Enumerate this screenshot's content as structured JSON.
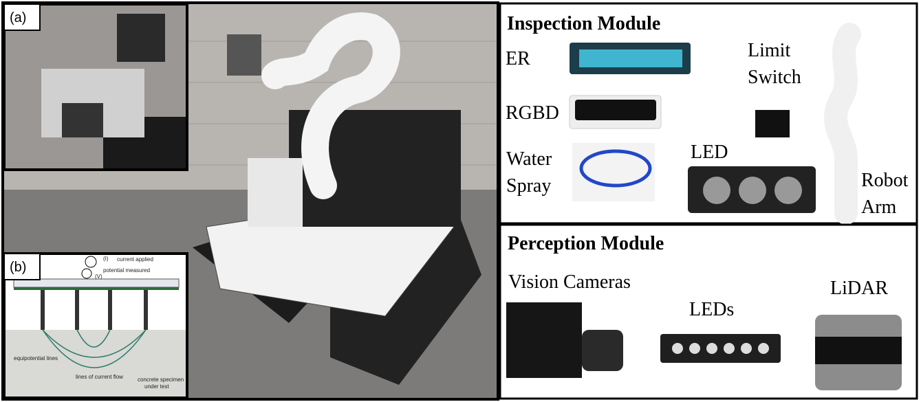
{
  "panel_a": {
    "tag": "(a)"
  },
  "panel_b": {
    "tag": "(b)",
    "labels": [
      "(I)",
      "current applied",
      "potential measured",
      "(V)",
      "equipotential lines",
      "lines of current flow",
      "concrete specimen",
      "under test"
    ]
  },
  "inspection": {
    "title": "Inspection Module",
    "items": [
      {
        "lines": [
          "ER"
        ]
      },
      {
        "lines": [
          "RGBD"
        ]
      },
      {
        "lines": [
          "Water",
          "Spray"
        ]
      },
      {
        "lines": [
          "LED"
        ]
      },
      {
        "lines": [
          "Limit",
          "Switch"
        ]
      },
      {
        "lines": [
          "Robot",
          "Arm"
        ]
      }
    ]
  },
  "perception": {
    "title": "Perception Module",
    "items": [
      {
        "lines": [
          "Vision Cameras"
        ]
      },
      {
        "lines": [
          "LEDs"
        ]
      },
      {
        "lines": [
          "LiDAR"
        ]
      }
    ]
  }
}
